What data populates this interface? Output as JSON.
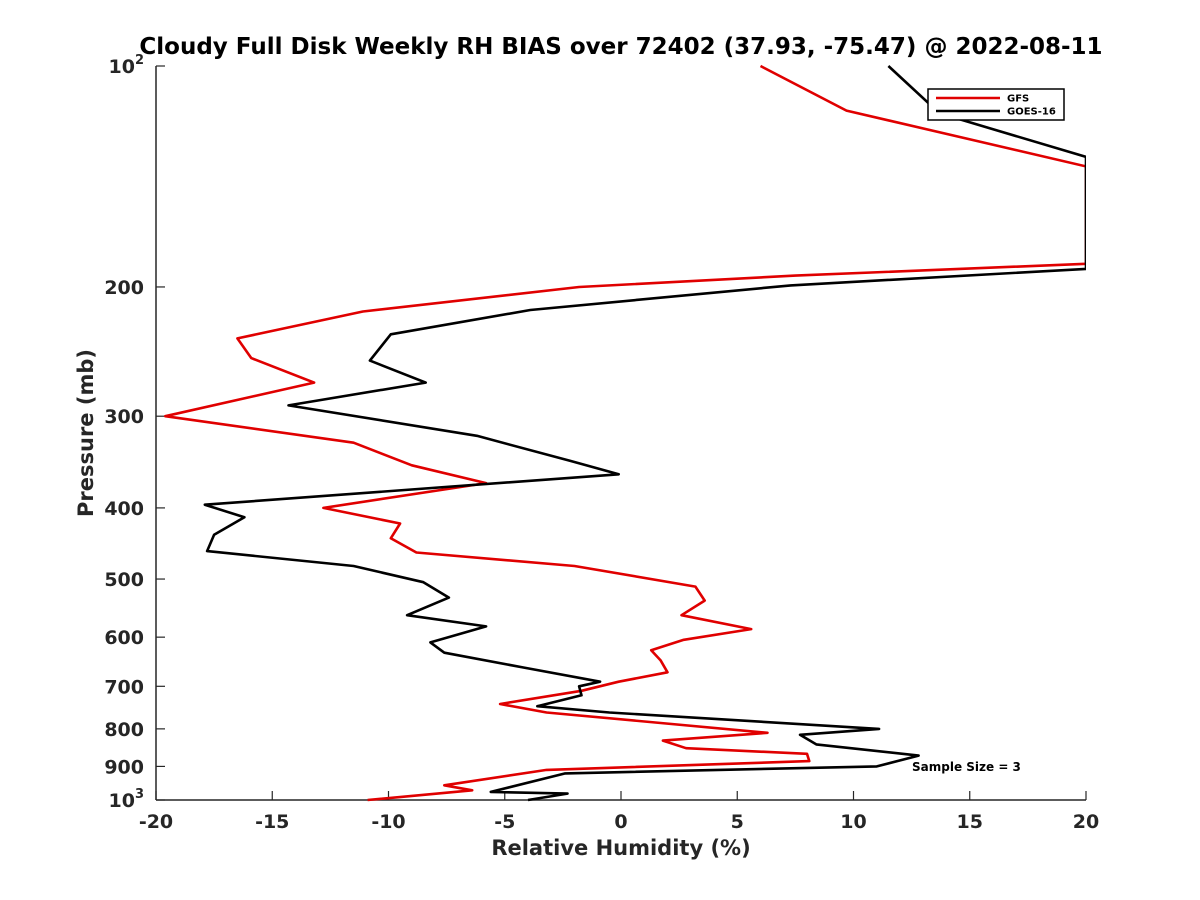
{
  "chart_data": {
    "type": "line",
    "title": "Cloudy Full Disk Weekly RH BIAS over 72402 (37.93, -75.47) @ 2022-08-11",
    "xlabel": "Relative Humidity (%)",
    "ylabel": "Pressure (mb)",
    "xlim": [
      -20,
      20
    ],
    "ylim": [
      1000,
      100
    ],
    "y_scale": "log",
    "y_reversed": true,
    "x_ticks": [
      -20,
      -15,
      -10,
      -5,
      0,
      5,
      10,
      15,
      20
    ],
    "x_tick_labels": [
      "-20",
      "-15",
      "-10",
      "-5",
      "0",
      "5",
      "10",
      "15",
      "20"
    ],
    "y_ticks": [
      100,
      200,
      300,
      400,
      500,
      600,
      700,
      800,
      900,
      1000
    ],
    "y_tick_labels": [
      {
        "base": "10",
        "exp": "2"
      },
      {
        "base": "200",
        "exp": ""
      },
      {
        "base": "300",
        "exp": ""
      },
      {
        "base": "400",
        "exp": ""
      },
      {
        "base": "500",
        "exp": ""
      },
      {
        "base": "600",
        "exp": ""
      },
      {
        "base": "700",
        "exp": ""
      },
      {
        "base": "800",
        "exp": ""
      },
      {
        "base": "900",
        "exp": ""
      },
      {
        "base": "10",
        "exp": "3"
      }
    ],
    "grid": false,
    "legend_position": "top-right",
    "annotation": "Sample Size = 3",
    "series": [
      {
        "name": "GFS",
        "color": "#e00000",
        "points": [
          [
            6.0,
            100
          ],
          [
            9.7,
            115
          ],
          [
            20.0,
            137
          ],
          [
            20.0,
            186
          ],
          [
            7.5,
            193
          ],
          [
            -1.8,
            200
          ],
          [
            -11.1,
            216
          ],
          [
            -16.5,
            235
          ],
          [
            -15.9,
            250
          ],
          [
            -13.2,
            270
          ],
          [
            -19.6,
            300
          ],
          [
            -11.5,
            326
          ],
          [
            -9.0,
            350
          ],
          [
            -5.8,
            370
          ],
          [
            -12.8,
            400
          ],
          [
            -9.5,
            420
          ],
          [
            -9.9,
            440
          ],
          [
            -8.8,
            460
          ],
          [
            -2.0,
            480
          ],
          [
            3.2,
            512
          ],
          [
            3.6,
            535
          ],
          [
            2.6,
            560
          ],
          [
            5.6,
            585
          ],
          [
            2.7,
            605
          ],
          [
            1.3,
            625
          ],
          [
            1.7,
            645
          ],
          [
            2.0,
            670
          ],
          [
            -0.1,
            690
          ],
          [
            -1.7,
            710
          ],
          [
            -5.2,
            740
          ],
          [
            -3.2,
            760
          ],
          [
            6.3,
            810
          ],
          [
            1.8,
            830
          ],
          [
            2.8,
            850
          ],
          [
            8.0,
            865
          ],
          [
            8.1,
            885
          ],
          [
            -3.2,
            910
          ],
          [
            -7.6,
            955
          ],
          [
            -6.4,
            970
          ],
          [
            -10.9,
            1000
          ]
        ]
      },
      {
        "name": "GOES-16",
        "color": "#000000",
        "points": [
          [
            11.5,
            100
          ],
          [
            13.7,
            116
          ],
          [
            20.0,
            133
          ],
          [
            20.0,
            189
          ],
          [
            7.3,
            199
          ],
          [
            -3.9,
            215
          ],
          [
            -9.9,
            232
          ],
          [
            -10.8,
            252
          ],
          [
            -8.4,
            270
          ],
          [
            -14.3,
            290
          ],
          [
            -6.2,
            319
          ],
          [
            -2.2,
            345
          ],
          [
            -0.1,
            360
          ],
          [
            -17.9,
            396
          ],
          [
            -16.2,
            412
          ],
          [
            -17.5,
            435
          ],
          [
            -17.8,
            458
          ],
          [
            -11.5,
            480
          ],
          [
            -8.5,
            505
          ],
          [
            -7.4,
            530
          ],
          [
            -9.2,
            560
          ],
          [
            -5.8,
            580
          ],
          [
            -8.2,
            610
          ],
          [
            -7.6,
            630
          ],
          [
            -4.2,
            660
          ],
          [
            -0.9,
            690
          ],
          [
            -1.8,
            700
          ],
          [
            -1.7,
            720
          ],
          [
            -3.6,
            745
          ],
          [
            -0.5,
            760
          ],
          [
            11.1,
            800
          ],
          [
            7.7,
            815
          ],
          [
            8.4,
            840
          ],
          [
            12.8,
            870
          ],
          [
            11.0,
            900
          ],
          [
            -2.4,
            920
          ],
          [
            -5.6,
            975
          ],
          [
            -2.3,
            980
          ],
          [
            -4.0,
            1000
          ]
        ]
      }
    ]
  }
}
